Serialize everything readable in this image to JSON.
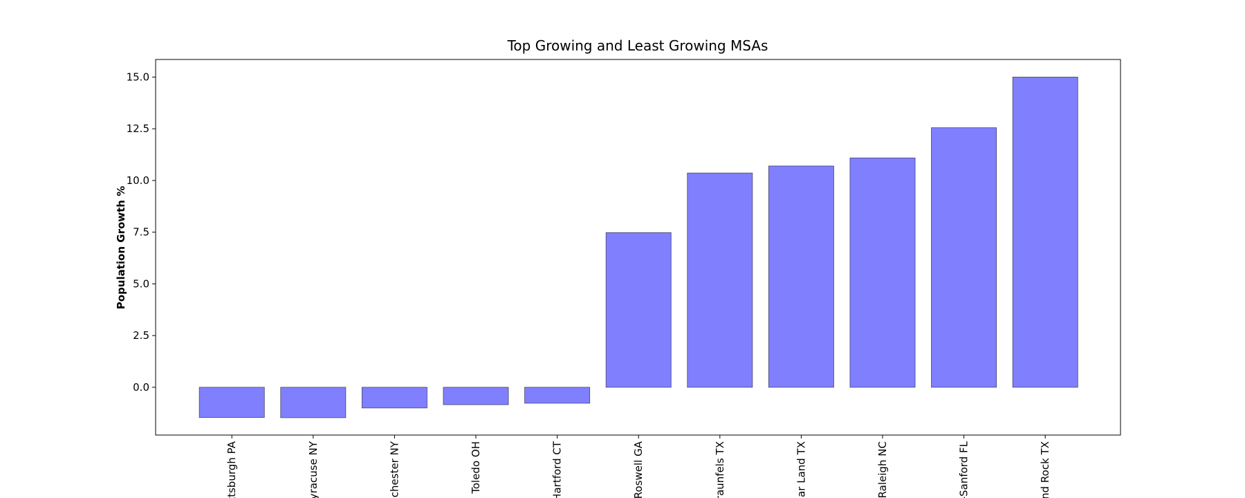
{
  "chart_data": {
    "type": "bar",
    "title": "Top Growing and Least Growing MSAs",
    "y_label": "Population Growth %",
    "categories": [
      "ttsburgh PA",
      "yracuse NY",
      "ochester NY",
      "Toledo OH",
      "Hartford CT",
      "-Roswell GA",
      "raunfels TX",
      "gar Land TX",
      "Raleigh NC",
      "-Sanford FL",
      "und Rock TX"
    ],
    "values": [
      -1.46,
      -1.47,
      -1.0,
      -0.84,
      -0.77,
      7.48,
      10.36,
      10.7,
      11.09,
      12.55,
      15.0
    ],
    "color": "#8080ff",
    "edge_color": "#444466",
    "ylim": [
      -2.31,
      15.85
    ],
    "yticks": [
      {
        "value": 0,
        "label": "0.0"
      },
      2.5,
      {
        "value": 5,
        "label": "5.0"
      },
      7.5,
      {
        "value": 10,
        "label": "10.0"
      },
      12.5,
      {
        "value": 15,
        "label": "15.0"
      }
    ],
    "grid": false
  }
}
